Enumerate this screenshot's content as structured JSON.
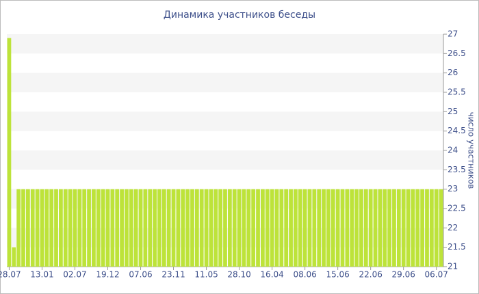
{
  "chart_data": {
    "type": "bar",
    "title": "Динамика участников беседы",
    "y_label": "число участников",
    "categories": [
      "28.07",
      null,
      null,
      null,
      null,
      null,
      null,
      "13.01",
      null,
      null,
      null,
      null,
      null,
      null,
      "02.07",
      null,
      null,
      null,
      null,
      null,
      null,
      "19.12",
      null,
      null,
      null,
      null,
      null,
      null,
      "07.06",
      null,
      null,
      null,
      null,
      null,
      null,
      "23.11",
      null,
      null,
      null,
      null,
      null,
      null,
      "11.05",
      null,
      null,
      null,
      null,
      null,
      null,
      "28.10",
      null,
      null,
      null,
      null,
      null,
      null,
      "16.04",
      null,
      null,
      null,
      null,
      null,
      null,
      "08.06",
      null,
      null,
      null,
      null,
      null,
      null,
      "15.06",
      null,
      null,
      null,
      null,
      null,
      null,
      "22.06",
      null,
      null,
      null,
      null,
      null,
      null,
      "29.06",
      null,
      null,
      null,
      null,
      null,
      null,
      "06.07",
      null
    ],
    "values": [
      26.9,
      21.5,
      23,
      23,
      23,
      23,
      23,
      23,
      23,
      23,
      23,
      23,
      23,
      23,
      23,
      23,
      23,
      23,
      23,
      23,
      23,
      23,
      23,
      23,
      23,
      23,
      23,
      23,
      23,
      23,
      23,
      23,
      23,
      23,
      23,
      23,
      23,
      23,
      23,
      23,
      23,
      23,
      23,
      23,
      23,
      23,
      23,
      23,
      23,
      23,
      23,
      23,
      23,
      23,
      23,
      23,
      23,
      23,
      23,
      23,
      23,
      23,
      23,
      23,
      23,
      23,
      23,
      23,
      23,
      23,
      23,
      23,
      23,
      23,
      23,
      23,
      23,
      23,
      23,
      23,
      23,
      23,
      23,
      23,
      23,
      23,
      23,
      23,
      23,
      23,
      23,
      23,
      23
    ],
    "color": "#bde33a",
    "ylim": [
      21,
      27
    ],
    "yticks": [
      21,
      21.5,
      22,
      22.5,
      23,
      23.5,
      24,
      24.5,
      25,
      25.5,
      26,
      26.5,
      27
    ],
    "y_axis_side": "right",
    "grid": true
  }
}
